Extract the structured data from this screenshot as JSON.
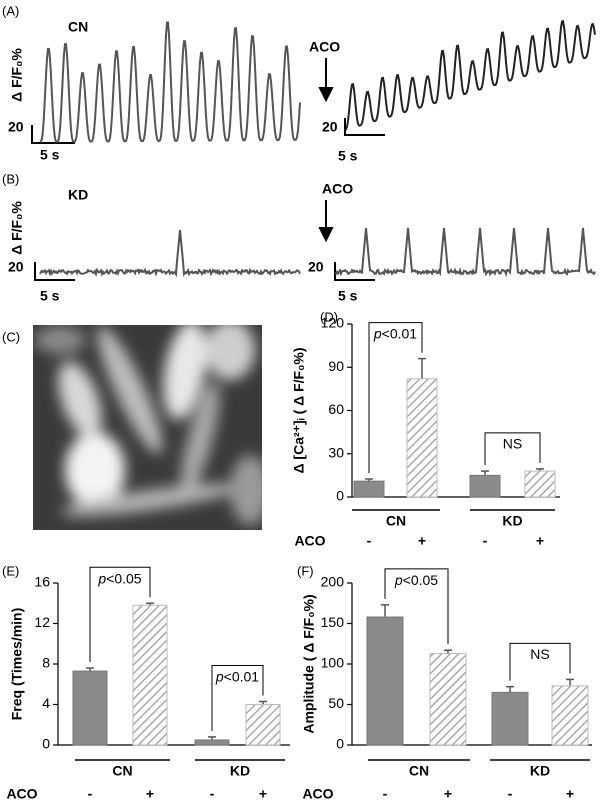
{
  "panels": {
    "A": {
      "label": "(A)",
      "condition": "CN",
      "ylabel": "Δ F/F₀%",
      "scale_y": "20",
      "scale_x": "5 s",
      "drug": "ACO",
      "scale_y_right": "20",
      "scale_x_right": "5 s"
    },
    "B": {
      "label": "(B)",
      "condition": "KD",
      "ylabel": "Δ F/F₀%",
      "scale_y": "20",
      "scale_x": "5 s",
      "drug": "ACO",
      "scale_y_right": "20",
      "scale_x_right": "5 s"
    },
    "C": {
      "label": "(C)"
    }
  },
  "chart_data": [
    {
      "type": "bar",
      "panel": "(D)",
      "ylabel": "Δ [Ca²⁺]ᵢ ( Δ F/F₀%)",
      "categories": [
        "-",
        "+",
        "-",
        "+"
      ],
      "category_title": "ACO",
      "groups": [
        "CN",
        "KD"
      ],
      "values": [
        11,
        82,
        15,
        18
      ],
      "errors": [
        1.5,
        14,
        3,
        1.5
      ],
      "colors": [
        "#8a8a8a",
        "#ffffff",
        "#8a8a8a",
        "#ffffff"
      ],
      "hatched": [
        false,
        true,
        false,
        true
      ],
      "ylim": [
        0,
        120
      ],
      "yticks": [
        0,
        30,
        60,
        90,
        120
      ],
      "brackets": [
        "p<0.01",
        "NS"
      ]
    },
    {
      "type": "bar",
      "panel": "(E)",
      "ylabel": "Freq (Times/min)",
      "categories": [
        "-",
        "+",
        "-",
        "+"
      ],
      "category_title": "ACO",
      "groups": [
        "CN",
        "KD"
      ],
      "values": [
        7.3,
        13.8,
        0.5,
        4.0
      ],
      "errors": [
        0.3,
        0.2,
        0.3,
        0.3
      ],
      "colors": [
        "#8a8a8a",
        "#ffffff",
        "#8a8a8a",
        "#ffffff"
      ],
      "hatched": [
        false,
        true,
        false,
        true
      ],
      "ylim": [
        0,
        16
      ],
      "yticks": [
        0,
        4,
        8,
        12,
        16
      ],
      "brackets": [
        "p<0.05",
        "p<0.01"
      ]
    },
    {
      "type": "bar",
      "panel": "(F)",
      "ylabel": "Amplitude ( Δ F/F₀%)",
      "categories": [
        "-",
        "+",
        "-",
        "+"
      ],
      "category_title": "ACO",
      "groups": [
        "CN",
        "KD"
      ],
      "values": [
        158,
        113,
        65,
        73
      ],
      "errors": [
        15,
        4,
        7,
        8
      ],
      "colors": [
        "#8a8a8a",
        "#ffffff",
        "#8a8a8a",
        "#ffffff"
      ],
      "hatched": [
        false,
        true,
        false,
        true
      ],
      "ylim": [
        0,
        200
      ],
      "yticks": [
        0,
        50,
        100,
        150,
        200
      ],
      "brackets": [
        "p<0.05",
        "NS"
      ]
    }
  ]
}
